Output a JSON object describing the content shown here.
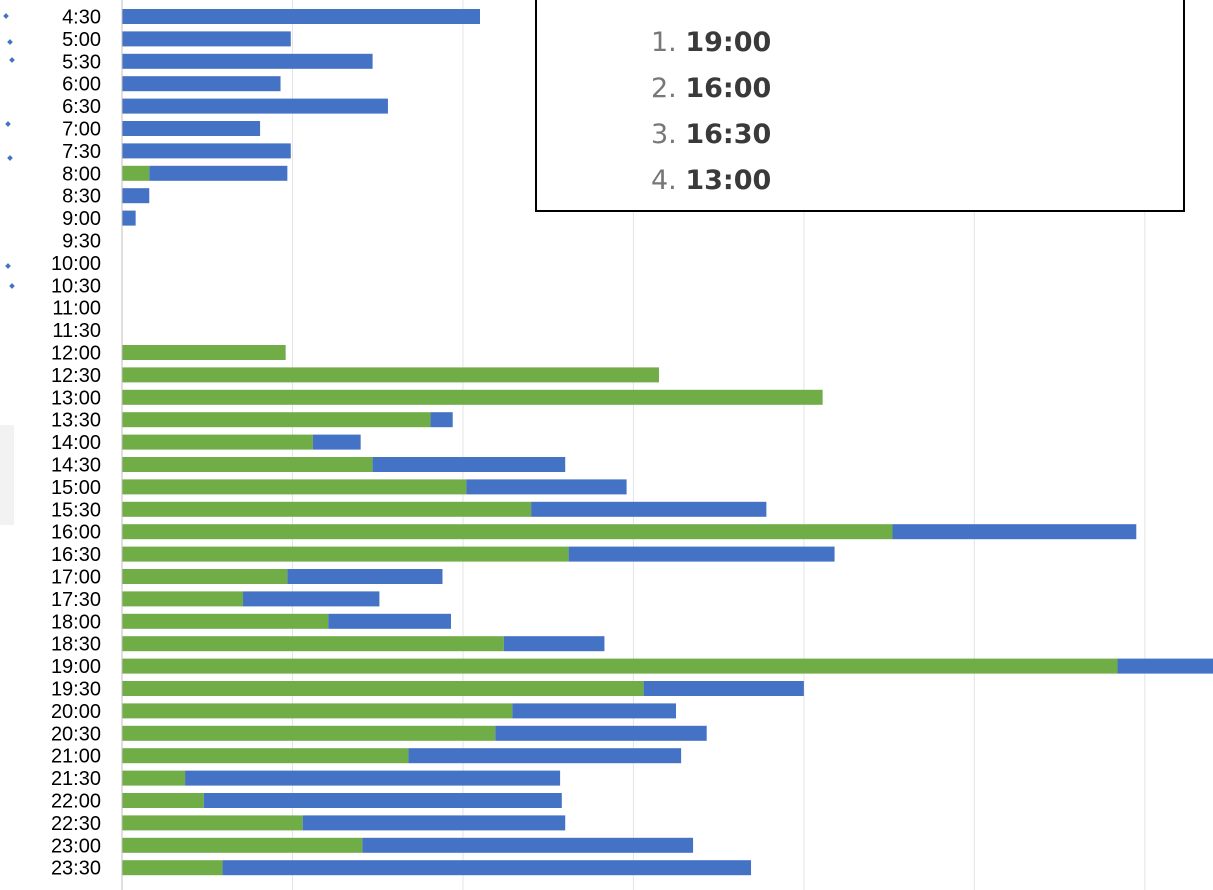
{
  "chart_data": {
    "type": "bar",
    "orientation": "horizontal",
    "stacked": true,
    "categories": [
      "4:30",
      "5:00",
      "5:30",
      "6:00",
      "6:30",
      "7:00",
      "7:30",
      "8:00",
      "8:30",
      "9:00",
      "9:30",
      "10:00",
      "10:30",
      "11:00",
      "11:30",
      "12:00",
      "12:30",
      "13:00",
      "13:30",
      "14:00",
      "14:30",
      "15:00",
      "15:30",
      "16:00",
      "16:30",
      "17:00",
      "17:30",
      "18:00",
      "18:30",
      "19:00",
      "19:30",
      "20:00",
      "20:30",
      "21:00",
      "21:30",
      "22:00",
      "22:30",
      "23:00",
      "23:30"
    ],
    "series": [
      {
        "color": "#70ad47",
        "values": [
          0,
          0,
          0,
          0,
          0,
          0,
          0,
          1.6,
          0,
          0,
          0,
          0,
          0,
          0,
          0,
          9.6,
          31.5,
          41.1,
          18.1,
          11.2,
          14.7,
          20.2,
          24,
          45.2,
          26.2,
          9.7,
          7.1,
          12.1,
          22.4,
          58.4,
          30.6,
          22.9,
          21.9,
          16.8,
          3.7,
          4.8,
          10.6,
          14.1,
          5.9
        ]
      },
      {
        "color": "#4472c4",
        "values": [
          21,
          9.9,
          14.7,
          9.3,
          15.6,
          8.1,
          9.9,
          8.1,
          1.6,
          0.8,
          0,
          0,
          0,
          0,
          0,
          0,
          0,
          0,
          1.3,
          2.8,
          11.3,
          9.4,
          13.8,
          14.3,
          15.6,
          9.1,
          8,
          7.2,
          5.9,
          6.5,
          9.4,
          9.6,
          12.4,
          16,
          22,
          21,
          15.4,
          19.4,
          31
        ]
      }
    ],
    "xlim": [
      0,
      64
    ],
    "x_grid_step": 10,
    "grid": true,
    "colors": {
      "green": "#70ad47",
      "blue": "#4472c4",
      "grid": "#e3e3e3"
    }
  },
  "ranking": {
    "items": [
      {
        "num": "1.",
        "time": "19:00"
      },
      {
        "num": "2.",
        "time": "16:00"
      },
      {
        "num": "3.",
        "time": "16:30"
      },
      {
        "num": "4.",
        "time": "13:00"
      }
    ]
  }
}
